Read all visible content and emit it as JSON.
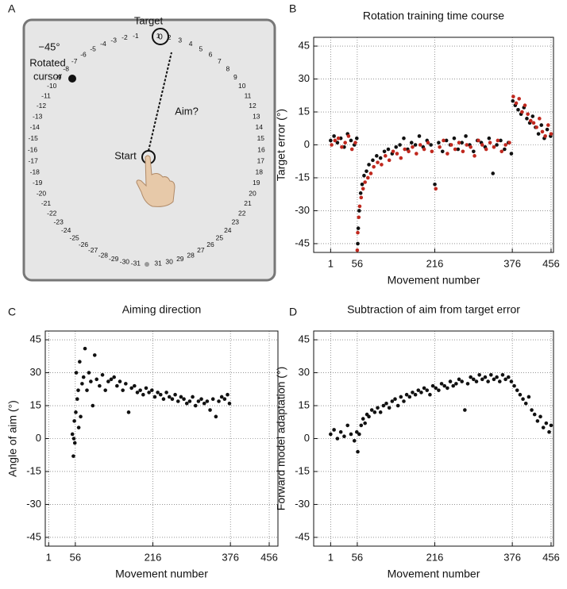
{
  "panel_labels": [
    "A",
    "B",
    "C",
    "D"
  ],
  "diagram": {
    "target_label": "Target",
    "target_number": 0,
    "rotation_label": "−45°",
    "cursor_label": [
      "Rotated",
      "cursor"
    ],
    "aim_label": "Aim?",
    "start_label": "Start",
    "dial_negative": [
      -1,
      -2,
      -3,
      -4,
      -5,
      -6,
      -7,
      -8,
      -9,
      -10,
      -11,
      -12,
      -13,
      -14,
      -15,
      -16,
      -17,
      -18,
      -19,
      -20,
      -21,
      -22,
      -23,
      -24,
      -25,
      -26,
      -27,
      -28,
      -29,
      -30,
      -31
    ],
    "dial_positive": [
      1,
      2,
      3,
      4,
      5,
      6,
      7,
      8,
      9,
      10,
      11,
      12,
      13,
      14,
      15,
      16,
      17,
      18,
      19,
      20,
      21,
      22,
      23,
      24,
      25,
      26,
      27,
      28,
      29,
      30,
      31
    ]
  },
  "chart_data": [
    {
      "type": "scatter",
      "title": "Rotation training time course",
      "x_label": "Movement number",
      "y_label": "Target error (°)",
      "xlim": [
        -34,
        461
      ],
      "ylim": [
        -49,
        49
      ],
      "xticks": [
        1,
        56,
        216,
        376,
        456
      ],
      "yticks": [
        -45,
        -30,
        -15,
        0,
        15,
        30,
        45
      ],
      "grid": true,
      "series": [
        {
          "color": "#111111",
          "x": [
            1,
            8,
            15,
            22,
            29,
            36,
            43,
            50,
            55,
            57,
            58,
            60,
            63,
            66,
            70,
            75,
            80,
            88,
            96,
            104,
            112,
            120,
            128,
            136,
            144,
            152,
            160,
            168,
            176,
            184,
            192,
            200,
            208,
            216,
            224,
            232,
            240,
            248,
            256,
            264,
            272,
            280,
            288,
            296,
            304,
            312,
            320,
            328,
            336,
            344,
            352,
            360,
            368,
            374,
            377,
            382,
            388,
            394,
            400,
            406,
            412,
            418,
            424,
            430,
            436,
            442,
            448,
            455
          ],
          "values": [
            2,
            4,
            1,
            3,
            -1,
            5,
            2,
            0,
            3,
            -45,
            -38,
            -30,
            -22,
            -18,
            -14,
            -12,
            -9,
            -7,
            -5,
            -6,
            -3,
            -2,
            -4,
            -1,
            0,
            3,
            -2,
            1,
            0,
            4,
            -1,
            2,
            0,
            -18,
            1,
            -3,
            2,
            0,
            3,
            -2,
            1,
            4,
            0,
            -3,
            2,
            1,
            -1,
            3,
            -13,
            0,
            2,
            -2,
            1,
            -4,
            20,
            18,
            16,
            14,
            17,
            12,
            10,
            13,
            8,
            5,
            9,
            3,
            7,
            4
          ]
        },
        {
          "color": "#c0281e",
          "x": [
            3,
            10,
            17,
            24,
            31,
            38,
            45,
            52,
            56,
            57,
            59,
            61,
            64,
            68,
            72,
            78,
            84,
            90,
            98,
            106,
            114,
            122,
            130,
            138,
            146,
            154,
            162,
            170,
            178,
            186,
            194,
            202,
            210,
            218,
            226,
            234,
            242,
            250,
            258,
            266,
            274,
            282,
            290,
            298,
            306,
            314,
            322,
            330,
            338,
            346,
            354,
            362,
            370,
            378,
            384,
            390,
            396,
            402,
            408,
            414,
            420,
            426,
            432,
            438,
            444,
            450,
            456
          ],
          "values": [
            0,
            2,
            3,
            -1,
            1,
            4,
            -2,
            1,
            -48,
            -40,
            -33,
            -28,
            -24,
            -20,
            -17,
            -15,
            -13,
            -10,
            -8,
            -9,
            -5,
            -7,
            -3,
            -4,
            -6,
            -2,
            -3,
            -1,
            -4,
            0,
            -2,
            1,
            -3,
            -20,
            -1,
            2,
            -4,
            0,
            -2,
            1,
            -3,
            0,
            -1,
            -5,
            2,
            0,
            -2,
            1,
            -1,
            2,
            -3,
            0,
            1,
            22,
            19,
            21,
            15,
            18,
            14,
            11,
            10,
            8,
            12,
            6,
            4,
            9,
            5
          ]
        }
      ]
    },
    {
      "type": "scatter",
      "title": "Aiming direction",
      "x_label": "Movement number",
      "y_label": "Angle of aim (°)",
      "xlim": [
        -6,
        474
      ],
      "ylim": [
        -49,
        49
      ],
      "xticks": [
        1,
        56,
        216,
        376,
        456
      ],
      "yticks": [
        -45,
        -30,
        -15,
        0,
        15,
        30,
        45
      ],
      "grid": true,
      "series": [
        {
          "color": "#111111",
          "x": [
            50,
            52,
            53,
            54,
            55,
            57,
            58,
            60,
            62,
            63,
            65,
            67,
            70,
            73,
            76,
            80,
            84,
            88,
            92,
            96,
            100,
            106,
            112,
            118,
            124,
            130,
            136,
            142,
            148,
            154,
            160,
            166,
            172,
            178,
            184,
            190,
            196,
            202,
            208,
            214,
            220,
            226,
            232,
            238,
            244,
            250,
            256,
            262,
            268,
            274,
            280,
            286,
            292,
            298,
            304,
            310,
            316,
            322,
            328,
            334,
            340,
            346,
            352,
            358,
            364,
            370,
            374
          ],
          "values": [
            2,
            -8,
            0,
            8,
            -2,
            12,
            30,
            18,
            22,
            5,
            35,
            10,
            25,
            28,
            41,
            22,
            30,
            26,
            15,
            38,
            27,
            24,
            29,
            22,
            26,
            27,
            28,
            24,
            26,
            22,
            25,
            12,
            23,
            24,
            21,
            22,
            20,
            23,
            21,
            22,
            19,
            21,
            20,
            18,
            21,
            19,
            18,
            20,
            17,
            19,
            18,
            16,
            17,
            19,
            15,
            17,
            18,
            16,
            17,
            13,
            18,
            10,
            17,
            19,
            18,
            20,
            16
          ]
        }
      ]
    },
    {
      "type": "scatter",
      "title": "Subtraction of aim from target error",
      "x_label": "Movement number",
      "y_label": "Forward model adaptation (°)",
      "xlim": [
        -34,
        461
      ],
      "ylim": [
        -49,
        49
      ],
      "xticks": [
        1,
        56,
        216,
        376,
        456
      ],
      "yticks": [
        -45,
        -30,
        -15,
        0,
        15,
        30,
        45
      ],
      "grid": true,
      "series": [
        {
          "color": "#111111",
          "x": [
            1,
            8,
            15,
            22,
            29,
            36,
            43,
            50,
            55,
            57,
            60,
            64,
            68,
            72,
            76,
            80,
            86,
            92,
            98,
            104,
            110,
            116,
            122,
            128,
            134,
            140,
            146,
            152,
            158,
            164,
            170,
            176,
            182,
            188,
            194,
            200,
            206,
            212,
            218,
            224,
            230,
            236,
            242,
            248,
            254,
            260,
            266,
            272,
            278,
            284,
            290,
            296,
            302,
            308,
            314,
            320,
            326,
            332,
            338,
            344,
            350,
            356,
            362,
            368,
            374,
            380,
            386,
            392,
            398,
            404,
            410,
            416,
            422,
            428,
            434,
            440,
            446,
            452,
            456
          ],
          "values": [
            2,
            4,
            0,
            3,
            1,
            6,
            2,
            -1,
            3,
            -6,
            2,
            6,
            9,
            7,
            11,
            10,
            13,
            12,
            14,
            12,
            15,
            16,
            14,
            17,
            18,
            15,
            19,
            17,
            20,
            19,
            21,
            20,
            22,
            21,
            23,
            22,
            20,
            24,
            23,
            22,
            25,
            24,
            23,
            26,
            24,
            25,
            27,
            26,
            13,
            25,
            28,
            27,
            26,
            29,
            27,
            28,
            26,
            29,
            27,
            28,
            26,
            29,
            27,
            28,
            26,
            24,
            22,
            20,
            18,
            16,
            19,
            13,
            11,
            8,
            10,
            5,
            7,
            3,
            6
          ]
        }
      ]
    }
  ]
}
